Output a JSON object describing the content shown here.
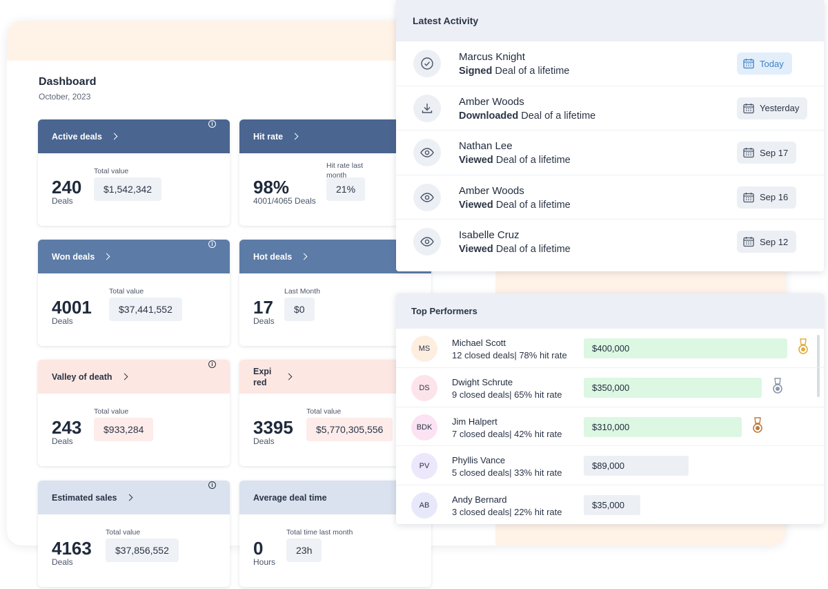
{
  "dashboard": {
    "title": "Dashboard",
    "date": "October, 2023"
  },
  "cards": {
    "active": {
      "title": "Active deals",
      "value": "240",
      "unit": "Deals",
      "label": "Total value",
      "box": "$1,542,342"
    },
    "hit": {
      "title": "Hit rate",
      "value": "98%",
      "unit": "4001/4065 Deals",
      "label_1": "Hit rate last",
      "label_2": "month",
      "box": "21%"
    },
    "won": {
      "title": "Won deals",
      "value": "4001",
      "unit": "Deals",
      "label": "Total value",
      "box": "$37,441,552"
    },
    "hot": {
      "title": "Hot deals",
      "value": "17",
      "unit": "Deals",
      "label": "Last Month",
      "box": "$0"
    },
    "valley": {
      "title": "Valley of death",
      "value": "243",
      "unit": "Deals",
      "label": "Total value",
      "box": "$933,284"
    },
    "expired": {
      "title_1": "Expi",
      "title_2": "red",
      "value": "3395",
      "unit": "Deals",
      "label": "Total value",
      "box": "$5,770,305,556"
    },
    "estimated": {
      "title": "Estimated sales",
      "value": "4163",
      "unit": "Deals",
      "label": "Total value",
      "box": "$37,856,552"
    },
    "average": {
      "title": "Average deal time",
      "value": "0",
      "unit": "Hours",
      "label": "Total time last month",
      "box": "23h"
    }
  },
  "activity": {
    "title": "Latest Activity",
    "items": [
      {
        "name": "Marcus Knight",
        "action": "Signed",
        "object": " Deal of a lifetime",
        "date": "Today",
        "icon": "check-circle-icon"
      },
      {
        "name": "Amber Woods",
        "action": "Downloaded",
        "object": " Deal of a lifetime",
        "date": "Yesterday",
        "icon": "download-icon"
      },
      {
        "name": "Nathan Lee",
        "action": "Viewed",
        "object": " Deal of a lifetime",
        "date": "Sep 17",
        "icon": "eye-icon"
      },
      {
        "name": "Amber Woods",
        "action": "Viewed",
        "object": " Deal of a lifetime",
        "date": "Sep 16",
        "icon": "eye-icon"
      },
      {
        "name": "Isabelle Cruz",
        "action": "Viewed",
        "object": " Deal of a lifetime",
        "date": "Sep 12",
        "icon": "eye-icon"
      }
    ]
  },
  "performers": {
    "title": "Top Performers",
    "items": [
      {
        "initials": "MS",
        "name": "Michael Scott",
        "stats": "12 closed deals| 78% hit rate",
        "amount": "$400,000",
        "avatar_color": "#fdeee0",
        "medal": "gold-medal-icon",
        "bar_fraction": 1.0
      },
      {
        "initials": "DS",
        "name": "Dwight Schrute",
        "stats": "9 closed deals| 65% hit rate",
        "amount": "$350,000",
        "avatar_color": "#fde4ea",
        "medal": "silver-medal-icon",
        "bar_fraction": 0.875
      },
      {
        "initials": "BDK",
        "name": "Jim Halpert",
        "stats": "7 closed deals| 42% hit rate",
        "amount": "$310,000",
        "avatar_color": "#fbe3f3",
        "medal": "bronze-medal-icon",
        "bar_fraction": 0.775
      },
      {
        "initials": "PV",
        "name": "Phyllis Vance",
        "stats": "5 closed deals| 33% hit rate",
        "amount": "$89,000",
        "avatar_color": "#ece7fb",
        "medal": "",
        "bar_fraction": 0.2225
      },
      {
        "initials": "AB",
        "name": "Andy Bernard",
        "stats": "3 closed deals| 22% hit rate",
        "amount": "$35,000",
        "avatar_color": "#e7e9fb",
        "medal": "",
        "bar_fraction": 0.0875
      }
    ]
  }
}
